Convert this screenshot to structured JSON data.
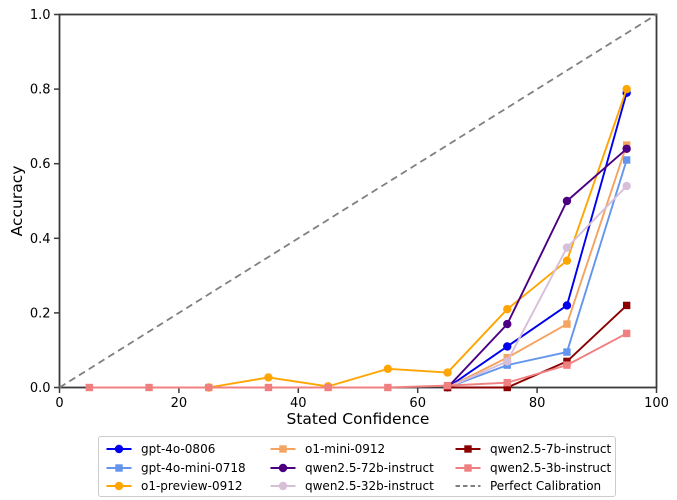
{
  "chart_data": {
    "type": "line",
    "title": "",
    "xlabel": "Stated Confidence",
    "ylabel": "Accuracy",
    "xlim": [
      0,
      100
    ],
    "ylim": [
      0.0,
      1.0
    ],
    "grid": false,
    "spine_color": "#3b3b3b",
    "xticks": [
      {
        "value": 0,
        "label": "0"
      },
      {
        "value": 20,
        "label": "20"
      },
      {
        "value": 40,
        "label": "40"
      },
      {
        "value": 60,
        "label": "60"
      },
      {
        "value": 80,
        "label": "80"
      },
      {
        "value": 100,
        "label": "100"
      }
    ],
    "yticks": [
      {
        "value": 0.0,
        "label": "0.0"
      },
      {
        "value": 0.2,
        "label": "0.2"
      },
      {
        "value": 0.4,
        "label": "0.4"
      },
      {
        "value": 0.6,
        "label": "0.6"
      },
      {
        "value": 0.8,
        "label": "0.8"
      },
      {
        "value": 1.0,
        "label": "1.0"
      }
    ],
    "series": [
      {
        "name": "gpt-4o-0806",
        "color": "#0000ee",
        "marker": "circle",
        "x": [
          65,
          75,
          85,
          95
        ],
        "y": [
          0.0,
          0.11,
          0.22,
          0.79
        ]
      },
      {
        "name": "gpt-4o-mini-0718",
        "color": "#6495ed",
        "marker": "square",
        "x": [
          65,
          75,
          85,
          95
        ],
        "y": [
          0.0,
          0.06,
          0.095,
          0.61
        ]
      },
      {
        "name": "o1-preview-0912",
        "color": "#ffa500",
        "marker": "circle",
        "x": [
          25,
          35,
          45,
          55,
          65,
          75,
          85,
          95
        ],
        "y": [
          0.0,
          0.027,
          0.003,
          0.05,
          0.04,
          0.21,
          0.34,
          0.8
        ]
      },
      {
        "name": "o1-mini-0912",
        "color": "#f4a460",
        "marker": "square",
        "x": [
          65,
          75,
          85,
          95
        ],
        "y": [
          0.0,
          0.08,
          0.17,
          0.65
        ]
      },
      {
        "name": "qwen2.5-72b-instruct",
        "color": "#4b0082",
        "marker": "circle",
        "x": [
          65,
          75,
          85,
          95
        ],
        "y": [
          0.0,
          0.17,
          0.5,
          0.64
        ]
      },
      {
        "name": "qwen2.5-32b-instruct",
        "color": "#d8bfd8",
        "marker": "circle",
        "x": [
          65,
          75,
          85,
          95
        ],
        "y": [
          0.0,
          0.07,
          0.375,
          0.54
        ]
      },
      {
        "name": "qwen2.5-7b-instruct",
        "color": "#8b0000",
        "marker": "square",
        "x": [
          65,
          75,
          85,
          95
        ],
        "y": [
          0.0,
          0.0,
          0.07,
          0.22
        ]
      },
      {
        "name": "qwen2.5-3b-instruct",
        "color": "#f08080",
        "marker": "square",
        "x": [
          5,
          15,
          25,
          35,
          45,
          55,
          65,
          75,
          85,
          95
        ],
        "y": [
          0.0,
          0.0,
          0.0,
          0.0,
          0.0,
          0.0,
          0.005,
          0.013,
          0.06,
          0.145
        ]
      }
    ],
    "reference_line": {
      "name": "Perfect Calibration",
      "color": "#808080",
      "style": "dashed",
      "x": [
        0,
        100
      ],
      "y": [
        0.0,
        1.0
      ]
    },
    "legend": {
      "position": "bottom",
      "columns": 3
    }
  }
}
